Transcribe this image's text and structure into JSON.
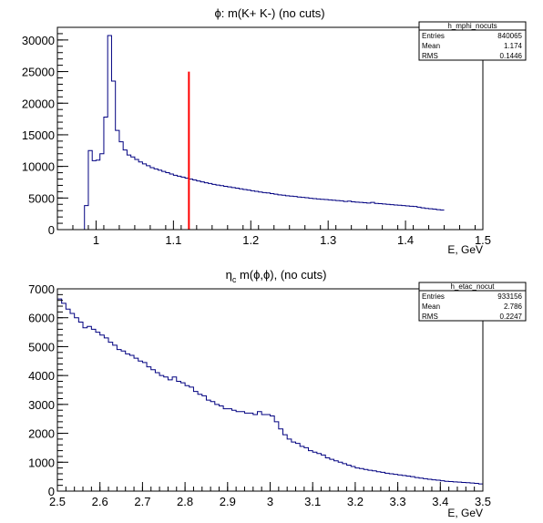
{
  "chart_data": [
    {
      "type": "histogram",
      "title_symbol": "ϕ",
      "title_rest": ": m(K+ K-) (no cuts)",
      "xlabel": "E, GeV",
      "ylabel": "",
      "xlim": [
        0.95,
        1.5
      ],
      "ylim": [
        0,
        32000
      ],
      "xticks": [
        1,
        1.1,
        1.2,
        1.3,
        1.4,
        1.5
      ],
      "xtick_labels": [
        "1",
        "1.1",
        "1.2",
        "1.3",
        "1.4",
        "1.5"
      ],
      "yticks": [
        0,
        5000,
        10000,
        15000,
        20000,
        25000,
        30000
      ],
      "ytick_labels": [
        "0",
        "5000",
        "10000",
        "15000",
        "20000",
        "25000",
        "30000"
      ],
      "grid": false,
      "line_color": "#000080",
      "marker_line": {
        "x": 1.12,
        "y_from": 0,
        "y_to": 25000,
        "color": "#ff0000"
      },
      "stats": {
        "name": "h_mphi_nocuts",
        "rows": [
          {
            "label": "Entries",
            "value": "840065"
          },
          {
            "label": "Mean",
            "value": "1.174"
          },
          {
            "label": "RMS",
            "value": "0.1446"
          }
        ]
      },
      "bins": {
        "x_start": 0.98,
        "width": 0.005,
        "values": [
          0,
          3800,
          12500,
          10900,
          11000,
          12000,
          17800,
          30700,
          23500,
          15700,
          13900,
          12600,
          11800,
          11500,
          11100,
          10700,
          10400,
          10100,
          9800,
          9600,
          9400,
          9200,
          9000,
          8800,
          8600,
          8450,
          8300,
          8150,
          8000,
          7850,
          7700,
          7550,
          7400,
          7300,
          7150,
          7050,
          6950,
          6850,
          6750,
          6650,
          6550,
          6450,
          6350,
          6250,
          6150,
          6050,
          5950,
          5850,
          5800,
          5700,
          5600,
          5500,
          5450,
          5350,
          5300,
          5250,
          5150,
          5100,
          5050,
          4950,
          4900,
          4850,
          4800,
          4750,
          4700,
          4650,
          4600,
          4550,
          4450,
          4500,
          4400,
          4350,
          4300,
          4250,
          4200,
          4300,
          4150,
          4100,
          4050,
          4000,
          3950,
          3900,
          3850,
          3800,
          3750,
          3700,
          3650,
          3550,
          3450,
          3350,
          3300,
          3250,
          3150,
          3100
        ]
      }
    },
    {
      "type": "histogram",
      "title_symbol": "η",
      "title_sub": "c",
      "title_rest": " m(ϕ,ϕ), (no cuts)",
      "xlabel": "E, GeV",
      "ylabel": "",
      "xlim": [
        2.5,
        3.5
      ],
      "ylim": [
        0,
        7000
      ],
      "xticks": [
        2.5,
        2.6,
        2.7,
        2.8,
        2.9,
        3,
        3.1,
        3.2,
        3.3,
        3.4,
        3.5
      ],
      "xtick_labels": [
        "2.5",
        "2.6",
        "2.7",
        "2.8",
        "2.9",
        "3",
        "3.1",
        "3.2",
        "3.3",
        "3.4",
        "3.5"
      ],
      "yticks": [
        0,
        1000,
        2000,
        3000,
        4000,
        5000,
        6000,
        7000
      ],
      "ytick_labels": [
        "0",
        "1000",
        "2000",
        "3000",
        "4000",
        "5000",
        "6000",
        "7000"
      ],
      "grid": false,
      "line_color": "#000080",
      "stats": {
        "name": "h_etac_nocut",
        "rows": [
          {
            "label": "Entries",
            "value": "933156"
          },
          {
            "label": "Mean",
            "value": "2.786"
          },
          {
            "label": "RMS",
            "value": "0.2247"
          }
        ]
      },
      "bins": {
        "x_start": 2.5,
        "width": 0.01,
        "values": [
          6650,
          6500,
          6300,
          6150,
          6000,
          5850,
          5650,
          5700,
          5600,
          5500,
          5400,
          5300,
          5150,
          5050,
          4900,
          4850,
          4750,
          4700,
          4600,
          4500,
          4450,
          4300,
          4200,
          4100,
          4000,
          3950,
          3850,
          3950,
          3800,
          3750,
          3650,
          3600,
          3450,
          3350,
          3300,
          3150,
          3100,
          3000,
          2950,
          2850,
          2850,
          2800,
          2750,
          2750,
          2700,
          2700,
          2650,
          2750,
          2650,
          2650,
          2600,
          2400,
          2150,
          1950,
          1800,
          1700,
          1650,
          1550,
          1500,
          1400,
          1350,
          1300,
          1250,
          1150,
          1100,
          1050,
          1000,
          950,
          900,
          850,
          800,
          780,
          750,
          720,
          700,
          670,
          650,
          620,
          600,
          580,
          560,
          540,
          520,
          500,
          470,
          450,
          430,
          410,
          390,
          380,
          360,
          340,
          330,
          320,
          310,
          300,
          290,
          280,
          270,
          250
        ]
      }
    }
  ]
}
